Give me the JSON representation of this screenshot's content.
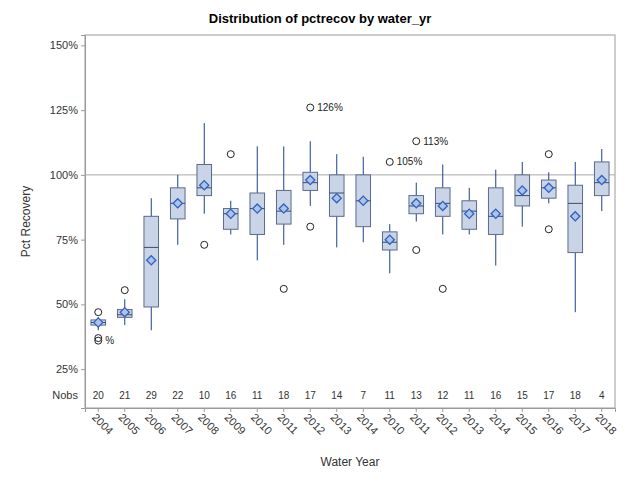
{
  "chart_data": {
    "type": "box",
    "title": "Distribution of pctrecov by water_yr",
    "x_label": "Water Year",
    "y_label": "Pct Recovery",
    "categories": [
      "2004",
      "2005",
      "2006",
      "2007",
      "2008",
      "2009",
      "2010",
      "2011",
      "2012",
      "2013",
      "2014",
      "2010",
      "2011",
      "2012",
      "2013",
      "2014",
      "2015",
      "2016",
      "2017",
      "2018"
    ],
    "boxes": [
      {
        "min": 40,
        "q1": 42,
        "median": 43,
        "q3": 44,
        "max": 45,
        "mean": 43,
        "outliers": [
          47,
          37,
          36
        ]
      },
      {
        "min": 42,
        "q1": 45,
        "median": 46,
        "q3": 48,
        "max": 52,
        "mean": 47,
        "outliers": [
          55.5
        ]
      },
      {
        "min": 40,
        "q1": 49,
        "median": 72,
        "q3": 84,
        "max": 91,
        "mean": 67,
        "outliers": []
      },
      {
        "min": 73,
        "q1": 83,
        "median": 89,
        "q3": 95,
        "max": 100,
        "mean": 89,
        "outliers": []
      },
      {
        "min": 85,
        "q1": 92,
        "median": 95,
        "q3": 104,
        "max": 120,
        "mean": 96,
        "outliers": [
          73
        ]
      },
      {
        "min": 77,
        "q1": 79,
        "median": 85,
        "q3": 87,
        "max": 90,
        "mean": 85,
        "outliers": [
          108
        ]
      },
      {
        "min": 67,
        "q1": 77,
        "median": 87,
        "q3": 93,
        "max": 111,
        "mean": 87,
        "outliers": []
      },
      {
        "min": 73,
        "q1": 81,
        "median": 86,
        "q3": 94,
        "max": 111,
        "mean": 87,
        "outliers": [
          56
        ]
      },
      {
        "min": 88,
        "q1": 94,
        "median": 97,
        "q3": 101,
        "max": 113,
        "mean": 98,
        "outliers": [
          126,
          80
        ]
      },
      {
        "min": 72,
        "q1": 84,
        "median": 93,
        "q3": 100,
        "max": 108,
        "mean": 91,
        "outliers": []
      },
      {
        "min": 74,
        "q1": 80,
        "median": 90,
        "q3": 100,
        "max": 107,
        "mean": 90,
        "outliers": []
      },
      {
        "min": 62,
        "q1": 71,
        "median": 74,
        "q3": 78,
        "max": 81,
        "mean": 75,
        "outliers": [
          105
        ]
      },
      {
        "min": 82,
        "q1": 85,
        "median": 88,
        "q3": 92,
        "max": 97,
        "mean": 89,
        "outliers": [
          113,
          71
        ]
      },
      {
        "min": 77,
        "q1": 84,
        "median": 89,
        "q3": 95,
        "max": 104,
        "mean": 88,
        "outliers": [
          56
        ]
      },
      {
        "min": 77,
        "q1": 79,
        "median": 86,
        "q3": 90,
        "max": 95,
        "mean": 85,
        "outliers": []
      },
      {
        "min": 65,
        "q1": 77,
        "median": 84,
        "q3": 95,
        "max": 102,
        "mean": 85,
        "outliers": []
      },
      {
        "min": 80,
        "q1": 88,
        "median": 92,
        "q3": 100,
        "max": 105,
        "mean": 94,
        "outliers": []
      },
      {
        "min": 89,
        "q1": 91,
        "median": 95,
        "q3": 98,
        "max": 101,
        "mean": 95,
        "outliers": [
          108,
          79
        ]
      },
      {
        "min": 47,
        "q1": 70,
        "median": 89,
        "q3": 96,
        "max": 105,
        "mean": 84,
        "outliers": []
      },
      {
        "min": 86,
        "q1": 92,
        "median": 97,
        "q3": 105,
        "max": 110,
        "mean": 98,
        "outliers": []
      }
    ],
    "nobs_label": "Nobs",
    "nobs": [
      20,
      21,
      29,
      22,
      10,
      16,
      11,
      18,
      17,
      14,
      7,
      11,
      13,
      12,
      11,
      16,
      15,
      17,
      18,
      4
    ],
    "annotations": [
      {
        "text": "%",
        "box": 0,
        "value": 36
      },
      {
        "text": "126%",
        "box": 8,
        "value": 126
      },
      {
        "text": "105%",
        "box": 11,
        "value": 105
      },
      {
        "text": "113%",
        "box": 12,
        "value": 113
      }
    ],
    "reference_lines": [
      100
    ],
    "ylim": [
      10,
      154
    ],
    "yticks": [
      {
        "value": 25,
        "label": "25%"
      },
      {
        "value": 50,
        "label": "50%"
      },
      {
        "value": 75,
        "label": "75%"
      },
      {
        "value": 100,
        "label": "100%"
      },
      {
        "value": 125,
        "label": "125%"
      },
      {
        "value": 150,
        "label": "150%"
      }
    ],
    "grid": false,
    "color": "#c9d4e6"
  }
}
